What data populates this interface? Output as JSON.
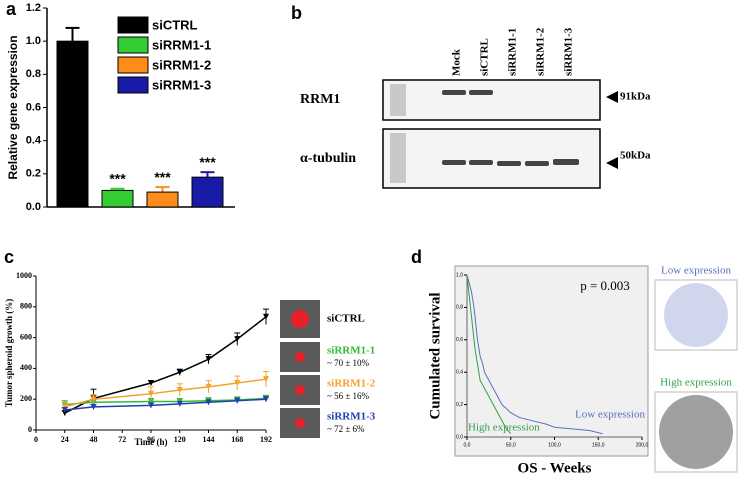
{
  "chart_data": [
    {
      "type": "bar",
      "panel_label": "a",
      "y_label": "Relative gene expression",
      "categories": [
        "siCTRL",
        "siRRM1-1",
        "siRRM1-2",
        "siRRM1-3"
      ],
      "values": [
        1.0,
        0.1,
        0.09,
        0.18
      ],
      "errors": [
        0.08,
        0.01,
        0.03,
        0.03
      ],
      "annotations": [
        null,
        "***",
        "***",
        "***"
      ],
      "colors": [
        "#000000",
        "#33cc33",
        "#ff8c1a",
        "#1a1aa8"
      ],
      "ylim": [
        0,
        1.2
      ],
      "yticks": [
        {
          "value": 0,
          "label": "0.0"
        },
        0.2,
        0.4,
        0.6,
        0.8,
        {
          "value": 1,
          "label": "1.0"
        },
        1.2
      ],
      "legend": "upper right"
    },
    {
      "type": "line",
      "panel_label": "c",
      "x_label": "Time (h)",
      "y_label": "Tumor spheroid growth (%)",
      "x": [
        24,
        48,
        96,
        120,
        144,
        168,
        192
      ],
      "series": [
        {
          "name": "siCTRL",
          "color": "#000000",
          "values": [
            110,
            205,
            305,
            375,
            460,
            590,
            735
          ],
          "errors": [
            15,
            60,
            15,
            20,
            30,
            40,
            50
          ]
        },
        {
          "name": "siRRM1-1",
          "color": "#33bb33",
          "values": [
            165,
            180,
            185,
            185,
            190,
            195,
            205
          ],
          "errors": [
            25,
            20,
            20,
            20,
            20,
            20,
            20
          ],
          "note": "~ 70 ± 10%"
        },
        {
          "name": "siRRM1-2",
          "color": "#f5a030",
          "values": [
            150,
            200,
            235,
            260,
            280,
            305,
            330
          ],
          "errors": [
            30,
            30,
            45,
            40,
            40,
            45,
            50
          ],
          "note": "~ 56 ± 16%"
        },
        {
          "name": "siRRM1-3",
          "color": "#2040b0",
          "values": [
            130,
            150,
            160,
            170,
            180,
            190,
            200
          ],
          "errors": [
            15,
            15,
            15,
            15,
            15,
            15,
            15
          ],
          "note": "~ 72 ± 6%"
        }
      ],
      "xlim": [
        0,
        192
      ],
      "xticks": [
        0,
        24,
        48,
        72,
        96,
        120,
        144,
        168,
        192
      ],
      "ylim": [
        0,
        1000
      ],
      "yticks": [
        0,
        200,
        400,
        600,
        800,
        1000
      ],
      "legend": "right"
    },
    {
      "type": "line",
      "panel_label": "d",
      "x_label": "OS - Weeks",
      "y_label": "Cumulated survival",
      "annotation": "p = 0.003",
      "series": [
        {
          "name": "Low expression",
          "color": "#5a6fc0",
          "x": [
            0,
            5,
            8,
            10,
            12,
            15,
            18,
            20,
            25,
            30,
            35,
            40,
            50,
            60,
            75,
            90,
            100,
            120,
            140,
            155
          ],
          "values": [
            1,
            0.9,
            0.8,
            0.7,
            0.6,
            0.5,
            0.45,
            0.4,
            0.35,
            0.3,
            0.25,
            0.2,
            0.15,
            0.12,
            0.1,
            0.08,
            0.06,
            0.05,
            0.04,
            0.02
          ]
        },
        {
          "name": "High expression",
          "color": "#33a04a",
          "x": [
            0,
            3,
            6,
            9,
            12,
            15,
            20,
            25,
            30,
            35,
            40,
            45,
            50
          ],
          "values": [
            1,
            0.85,
            0.7,
            0.55,
            0.45,
            0.35,
            0.3,
            0.25,
            0.2,
            0.15,
            0.1,
            0.05,
            0.02
          ]
        }
      ],
      "xlim": [
        0,
        200
      ],
      "xticks": [
        {
          "value": 0,
          "label": "0,0"
        },
        {
          "value": 50,
          "label": "50,0"
        },
        {
          "value": 100,
          "label": "100,0"
        },
        {
          "value": 150,
          "label": "150,0"
        },
        {
          "value": 200,
          "label": "200,0"
        }
      ],
      "ylim": [
        0,
        1
      ],
      "yticks": [
        {
          "value": 0,
          "label": "0,0"
        },
        {
          "value": 0.2,
          "label": "0,2"
        },
        {
          "value": 0.4,
          "label": "0,4"
        },
        {
          "value": 0.6,
          "label": "0,6"
        },
        {
          "value": 0.8,
          "label": "0,8"
        },
        {
          "value": 1,
          "label": "1,0"
        }
      ],
      "image_labels": [
        "Low expression",
        "High expression"
      ]
    }
  ],
  "blot": {
    "panel_label": "b",
    "lanes": [
      "Mock",
      "siCTRL",
      "siRRM1-1",
      "siRRM1-2",
      "siRRM1-3"
    ],
    "bands": [
      {
        "name": "RRM1",
        "size": "91kDa"
      },
      {
        "name": "α-tubulin",
        "size": "50kDa"
      }
    ]
  }
}
